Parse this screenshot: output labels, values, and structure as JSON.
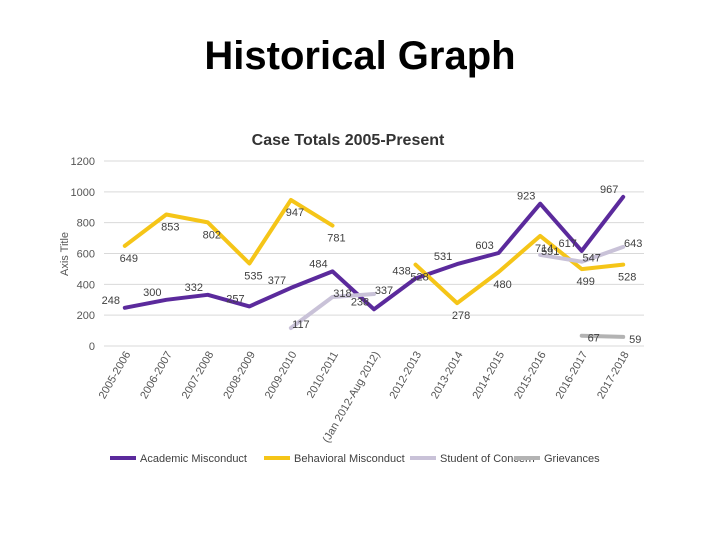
{
  "slide": {
    "title": "Historical Graph"
  },
  "chart_data": {
    "type": "line",
    "title": "Case Totals 2005-Present",
    "xlabel": "",
    "ylabel": "Axis Title",
    "ylim": [
      0,
      1200
    ],
    "yticks": [
      0,
      200,
      400,
      600,
      800,
      1000,
      1200
    ],
    "grid": true,
    "legend_position": "bottom",
    "categories": [
      "2005-2006",
      "2006-2007",
      "2007-2008",
      "2008-2009",
      "2009-2010",
      "2010-2011",
      "(Jan 2012-Aug 2012)",
      "2012-2013",
      "2013-2014",
      "2014-2015",
      "2015-2016",
      "2016-2017",
      "2017-2018"
    ],
    "series": [
      {
        "name": "Academic Misconduct",
        "color": "#5b2a9c",
        "values": [
          248,
          300,
          332,
          257,
          377,
          484,
          238,
          438,
          531,
          603,
          923,
          617,
          967
        ]
      },
      {
        "name": "Behavioral Misconduct",
        "color": "#f5c518",
        "values": [
          649,
          853,
          802,
          535,
          947,
          781,
          null,
          528,
          278,
          480,
          714,
          499,
          528
        ]
      },
      {
        "name": "Student of Concern",
        "color": "#c9c2d8",
        "values": [
          null,
          null,
          null,
          null,
          117,
          318,
          337,
          null,
          null,
          null,
          591,
          547,
          643
        ]
      },
      {
        "name": "Grievances",
        "color": "#b3b3b3",
        "values": [
          null,
          null,
          null,
          null,
          null,
          null,
          null,
          null,
          null,
          null,
          null,
          67,
          59
        ]
      }
    ]
  }
}
